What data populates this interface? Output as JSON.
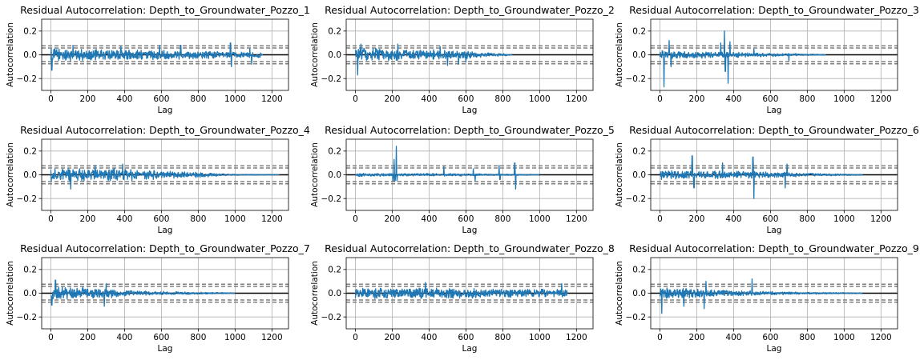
{
  "chart_data": {
    "layout": "3x3 grid",
    "shared": {
      "type": "line",
      "xlabel": "Lag",
      "ylabel": "Autocorrelation",
      "xlim": [
        -50,
        1290
      ],
      "ylim": [
        -0.3,
        0.3
      ],
      "xticks": [
        0,
        200,
        400,
        600,
        800,
        1000,
        1200
      ],
      "yticks": [
        -0.2,
        0.0,
        0.2
      ],
      "ytick_labels": [
        "−0.2",
        "0.0",
        "0.2"
      ],
      "grid": true,
      "zero_line": {
        "y": 0,
        "color": "#000000"
      },
      "confidence_lines": {
        "values": [
          0.0575,
          0.0755,
          -0.0575,
          -0.0755
        ],
        "color": "#808080",
        "style": "dashed"
      },
      "series_color": "#1f77b4"
    },
    "charts": [
      {
        "title": "Residual Autocorrelation: Depth_to_Groundwater_Pozzo_1",
        "n_lags": 1150,
        "envelope": [
          [
            0,
            0.06
          ],
          [
            200,
            0.05
          ],
          [
            500,
            0.05
          ],
          [
            800,
            0.035
          ],
          [
            1150,
            0.025
          ]
        ],
        "spikes": [
          [
            5,
            -0.13
          ],
          [
            120,
            0.08
          ],
          [
            380,
            0.07
          ],
          [
            590,
            0.08
          ],
          [
            705,
            0.08
          ],
          [
            975,
            0.1
          ],
          [
            980,
            -0.1
          ],
          [
            1080,
            0.05
          ],
          [
            1090,
            -0.08
          ]
        ]
      },
      {
        "title": "Residual Autocorrelation: Depth_to_Groundwater_Pozzo_2",
        "n_lags": 850,
        "envelope": [
          [
            0,
            0.07
          ],
          [
            300,
            0.05
          ],
          [
            600,
            0.035
          ],
          [
            850,
            0.005
          ]
        ],
        "spikes": [
          [
            12,
            -0.17
          ],
          [
            30,
            0.09
          ],
          [
            230,
            0.09
          ],
          [
            460,
            0.07
          ],
          [
            500,
            -0.09
          ],
          [
            560,
            -0.08
          ],
          [
            600,
            -0.06
          ]
        ]
      },
      {
        "title": "Residual Autocorrelation: Depth_to_Groundwater_Pozzo_3",
        "n_lags": 900,
        "envelope": [
          [
            0,
            0.04
          ],
          [
            250,
            0.03
          ],
          [
            500,
            0.02
          ],
          [
            900,
            0.004
          ]
        ],
        "spikes": [
          [
            22,
            -0.27
          ],
          [
            50,
            0.12
          ],
          [
            60,
            -0.1
          ],
          [
            330,
            0.1
          ],
          [
            350,
            0.2
          ],
          [
            355,
            -0.14
          ],
          [
            370,
            -0.24
          ],
          [
            380,
            0.11
          ],
          [
            510,
            0.05
          ],
          [
            700,
            -0.05
          ]
        ]
      },
      {
        "title": "Residual Autocorrelation: Depth_to_Groundwater_Pozzo_4",
        "n_lags": 1240,
        "envelope": [
          [
            0,
            0.06
          ],
          [
            400,
            0.055
          ],
          [
            600,
            0.04
          ],
          [
            850,
            0.02
          ],
          [
            1000,
            0.005
          ],
          [
            1240,
            0.003
          ]
        ],
        "spikes": [
          [
            108,
            -0.12
          ],
          [
            240,
            0.08
          ],
          [
            390,
            0.09
          ]
        ]
      },
      {
        "title": "Residual Autocorrelation: Depth_to_Groundwater_Pozzo_5",
        "n_lags": 1000,
        "envelope": [
          [
            0,
            0.015
          ],
          [
            500,
            0.012
          ],
          [
            1000,
            0.004
          ]
        ],
        "spikes": [
          [
            205,
            -0.05
          ],
          [
            210,
            0.13
          ],
          [
            215,
            -0.05
          ],
          [
            222,
            0.24
          ],
          [
            226,
            -0.05
          ],
          [
            480,
            0.07
          ],
          [
            640,
            0.05
          ],
          [
            650,
            -0.05
          ],
          [
            780,
            0.08
          ],
          [
            785,
            -0.04
          ],
          [
            865,
            0.1
          ],
          [
            870,
            -0.12
          ]
        ]
      },
      {
        "title": "Residual Autocorrelation: Depth_to_Groundwater_Pozzo_6",
        "n_lags": 1100,
        "envelope": [
          [
            0,
            0.04
          ],
          [
            500,
            0.035
          ],
          [
            800,
            0.015
          ],
          [
            1100,
            0.005
          ]
        ],
        "spikes": [
          [
            175,
            0.16
          ],
          [
            185,
            -0.11
          ],
          [
            340,
            0.1
          ],
          [
            505,
            0.15
          ],
          [
            510,
            -0.2
          ],
          [
            690,
            0.09
          ],
          [
            680,
            -0.11
          ]
        ]
      },
      {
        "title": "Residual Autocorrelation: Depth_to_Groundwater_Pozzo_7",
        "n_lags": 1000,
        "envelope": [
          [
            0,
            0.06
          ],
          [
            300,
            0.045
          ],
          [
            500,
            0.02
          ],
          [
            800,
            0.01
          ],
          [
            1000,
            0.004
          ]
        ],
        "spikes": [
          [
            5,
            -0.1
          ],
          [
            25,
            0.11
          ],
          [
            290,
            -0.11
          ],
          [
            300,
            0.08
          ]
        ]
      },
      {
        "title": "Residual Autocorrelation: Depth_to_Groundwater_Pozzo_8",
        "n_lags": 1150,
        "envelope": [
          [
            0,
            0.05
          ],
          [
            600,
            0.045
          ],
          [
            1150,
            0.035
          ]
        ],
        "spikes": [
          [
            380,
            0.09
          ],
          [
            1120,
            0.08
          ]
        ]
      },
      {
        "title": "Residual Autocorrelation: Depth_to_Groundwater_Pozzo_9",
        "n_lags": 1100,
        "envelope": [
          [
            0,
            0.055
          ],
          [
            400,
            0.03
          ],
          [
            700,
            0.012
          ],
          [
            1100,
            0.004
          ]
        ],
        "spikes": [
          [
            10,
            -0.17
          ],
          [
            130,
            -0.11
          ],
          [
            240,
            -0.13
          ],
          [
            250,
            0.1
          ],
          [
            500,
            0.12
          ]
        ]
      }
    ]
  }
}
